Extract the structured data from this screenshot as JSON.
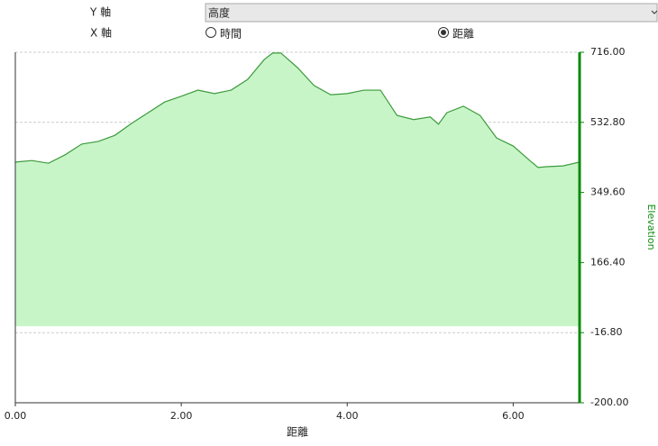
{
  "controls": {
    "y_axis_label": "Y 軸",
    "y_select": "高度",
    "x_axis_label": "X 軸",
    "x_options": [
      "時間",
      "距離"
    ],
    "x_selected": 1
  },
  "chart_data": {
    "type": "area",
    "xlabel": "距離",
    "ylabel": "Elevation",
    "x": [
      0,
      0.2,
      0.4,
      0.6,
      0.8,
      1.0,
      1.2,
      1.4,
      1.6,
      1.8,
      2.0,
      2.2,
      2.4,
      2.6,
      2.8,
      3.0,
      3.1,
      3.2,
      3.4,
      3.6,
      3.8,
      4.0,
      4.2,
      4.4,
      4.6,
      4.8,
      5.0,
      5.1,
      5.2,
      5.4,
      5.6,
      5.8,
      6.0,
      6.2,
      6.3,
      6.4,
      6.6,
      6.8
    ],
    "values": [
      429,
      433,
      426,
      448,
      476,
      483,
      499,
      530,
      558,
      586,
      601,
      617,
      608,
      617,
      645,
      697,
      714,
      714,
      676,
      629,
      605,
      608,
      617,
      617,
      551,
      540,
      547,
      528,
      558,
      575,
      551,
      492,
      471,
      433,
      415,
      417,
      419,
      429
    ],
    "color": "#3c9b3c",
    "fill": "#c8f5c8",
    "axis_color": "#0a8a0a",
    "xlim": [
      0,
      6.8
    ],
    "ylim": [
      -200,
      716
    ],
    "xticks": [
      {
        "value": 0,
        "label": "0.00"
      },
      {
        "value": 2,
        "label": "2.00"
      },
      {
        "value": 4,
        "label": "4.00"
      },
      {
        "value": 6,
        "label": "6.00"
      }
    ],
    "yticks": [
      {
        "value": -200,
        "label": "-200.00"
      },
      {
        "value": -16.8,
        "label": "-16.80"
      },
      {
        "value": 166.4,
        "label": "166.40"
      },
      {
        "value": 349.6,
        "label": "349.60"
      },
      {
        "value": 532.8,
        "label": "532.80"
      },
      {
        "value": 716,
        "label": "716.00"
      }
    ],
    "grid": true
  }
}
